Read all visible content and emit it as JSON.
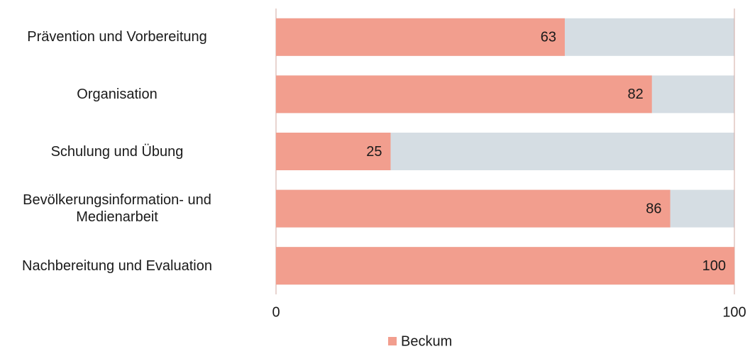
{
  "chart_data": {
    "type": "bar",
    "orientation": "horizontal",
    "categories": [
      "Prävention und Vorbereitung",
      "Organisation",
      "Schulung und Übung",
      "Bevölkerungsinformation- und\nMedienarbeit",
      "Nachbereitung und Evaluation"
    ],
    "series": [
      {
        "name": "Beckum",
        "color": "#f29e8e",
        "values": [
          63,
          82,
          25,
          86,
          100
        ]
      }
    ],
    "xlim": [
      0,
      100
    ],
    "xticks": [
      0,
      100
    ],
    "grid": true,
    "legend": "bottom"
  }
}
